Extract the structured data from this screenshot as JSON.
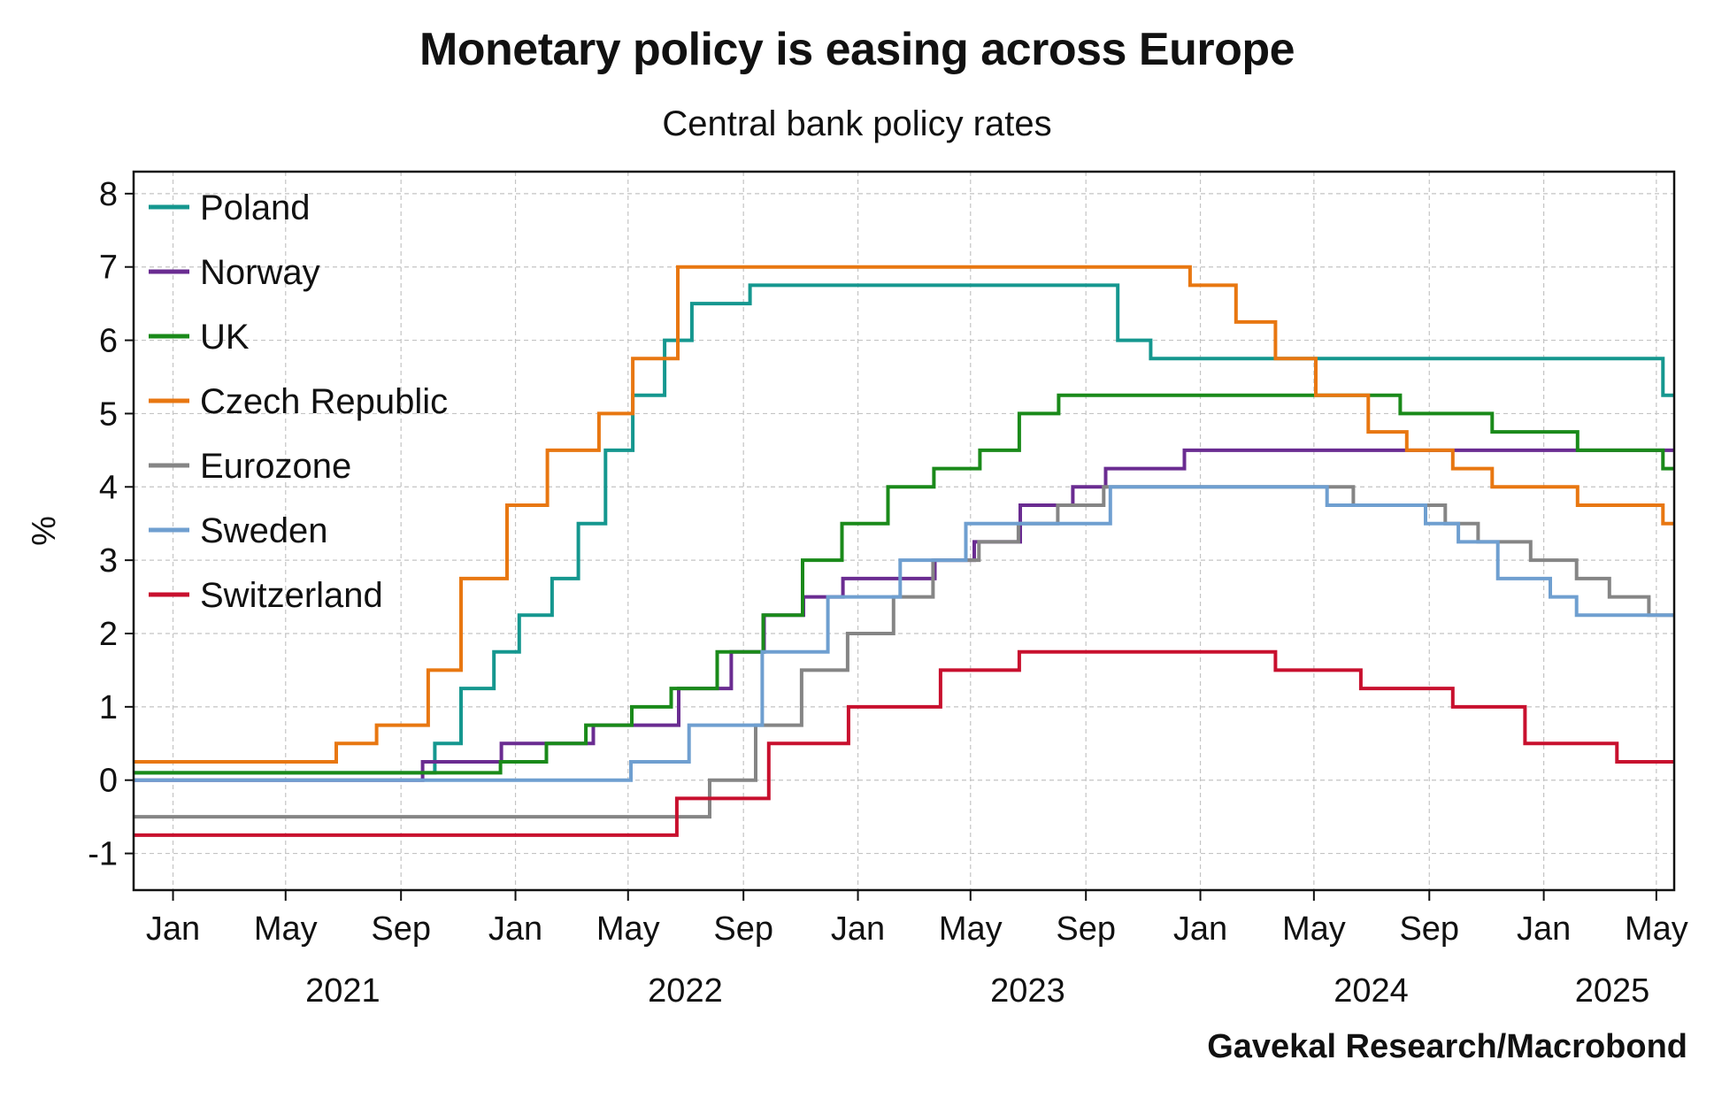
{
  "chart_data": {
    "type": "line",
    "title": "Monetary policy is easing across Europe",
    "subtitle": "Central bank policy rates",
    "ylabel": "%",
    "xlabel": "",
    "source": "Gavekal Research/Macrobond",
    "ylim": [
      -1.5,
      8.3
    ],
    "y_ticks": [
      -1,
      0,
      1,
      2,
      3,
      4,
      5,
      6,
      7,
      8
    ],
    "x_range": [
      "2020-11-20",
      "2025-05-20"
    ],
    "x_ticks": [
      {
        "date": "2021-01-01",
        "label": "Jan"
      },
      {
        "date": "2021-05-01",
        "label": "May"
      },
      {
        "date": "2021-09-01",
        "label": "Sep"
      },
      {
        "date": "2022-01-01",
        "label": "Jan"
      },
      {
        "date": "2022-05-01",
        "label": "May"
      },
      {
        "date": "2022-09-01",
        "label": "Sep"
      },
      {
        "date": "2023-01-01",
        "label": "Jan"
      },
      {
        "date": "2023-05-01",
        "label": "May"
      },
      {
        "date": "2023-09-01",
        "label": "Sep"
      },
      {
        "date": "2024-01-01",
        "label": "Jan"
      },
      {
        "date": "2024-05-01",
        "label": "May"
      },
      {
        "date": "2024-09-01",
        "label": "Sep"
      },
      {
        "date": "2025-01-01",
        "label": "Jan"
      },
      {
        "date": "2025-05-01",
        "label": "May"
      }
    ],
    "year_labels": [
      {
        "date": "2021-07-01",
        "label": "2021"
      },
      {
        "date": "2022-07-01",
        "label": "2022"
      },
      {
        "date": "2023-07-01",
        "label": "2023"
      },
      {
        "date": "2024-07-01",
        "label": "2024"
      },
      {
        "date": "2025-03-15",
        "label": "2025"
      }
    ],
    "grid": true,
    "legend_position": "top-left",
    "series": [
      {
        "name": "Poland",
        "color": "#15978f",
        "steps": [
          [
            "2020-11-20",
            0.1
          ],
          [
            "2021-10-07",
            0.5
          ],
          [
            "2021-11-04",
            1.25
          ],
          [
            "2021-12-09",
            1.75
          ],
          [
            "2022-01-05",
            2.25
          ],
          [
            "2022-02-09",
            2.75
          ],
          [
            "2022-03-09",
            3.5
          ],
          [
            "2022-04-07",
            4.5
          ],
          [
            "2022-05-06",
            5.25
          ],
          [
            "2022-06-09",
            6.0
          ],
          [
            "2022-07-08",
            6.5
          ],
          [
            "2022-09-08",
            6.75
          ],
          [
            "2023-10-05",
            6.0
          ],
          [
            "2023-11-09",
            5.75
          ],
          [
            "2025-05-08",
            5.25
          ],
          [
            "2025-05-20",
            5.25
          ]
        ]
      },
      {
        "name": "Norway",
        "color": "#6a2c91",
        "steps": [
          [
            "2020-11-20",
            0.0
          ],
          [
            "2021-09-24",
            0.25
          ],
          [
            "2021-12-17",
            0.5
          ],
          [
            "2022-03-25",
            0.75
          ],
          [
            "2022-06-24",
            1.25
          ],
          [
            "2022-08-19",
            1.75
          ],
          [
            "2022-09-23",
            2.25
          ],
          [
            "2022-11-04",
            2.5
          ],
          [
            "2022-12-16",
            2.75
          ],
          [
            "2023-03-24",
            3.0
          ],
          [
            "2023-05-05",
            3.25
          ],
          [
            "2023-06-23",
            3.75
          ],
          [
            "2023-08-18",
            4.0
          ],
          [
            "2023-09-22",
            4.25
          ],
          [
            "2023-12-15",
            4.5
          ],
          [
            "2025-05-20",
            4.5
          ]
        ]
      },
      {
        "name": "UK",
        "color": "#1a8a1a",
        "steps": [
          [
            "2020-11-20",
            0.1
          ],
          [
            "2021-12-16",
            0.25
          ],
          [
            "2022-02-03",
            0.5
          ],
          [
            "2022-03-17",
            0.75
          ],
          [
            "2022-05-05",
            1.0
          ],
          [
            "2022-06-16",
            1.25
          ],
          [
            "2022-08-04",
            1.75
          ],
          [
            "2022-09-22",
            2.25
          ],
          [
            "2022-11-03",
            3.0
          ],
          [
            "2022-12-15",
            3.5
          ],
          [
            "2023-02-02",
            4.0
          ],
          [
            "2023-03-23",
            4.25
          ],
          [
            "2023-05-11",
            4.5
          ],
          [
            "2023-06-22",
            5.0
          ],
          [
            "2023-08-03",
            5.25
          ],
          [
            "2024-08-01",
            5.0
          ],
          [
            "2024-11-07",
            4.75
          ],
          [
            "2025-02-06",
            4.5
          ],
          [
            "2025-05-08",
            4.25
          ],
          [
            "2025-05-20",
            4.25
          ]
        ]
      },
      {
        "name": "Czech Republic",
        "color": "#e87711",
        "steps": [
          [
            "2020-11-20",
            0.25
          ],
          [
            "2021-06-24",
            0.5
          ],
          [
            "2021-08-06",
            0.75
          ],
          [
            "2021-09-30",
            1.5
          ],
          [
            "2021-11-04",
            2.75
          ],
          [
            "2021-12-23",
            3.75
          ],
          [
            "2022-02-04",
            4.5
          ],
          [
            "2022-03-31",
            5.0
          ],
          [
            "2022-05-06",
            5.75
          ],
          [
            "2022-06-23",
            7.0
          ],
          [
            "2023-12-21",
            6.75
          ],
          [
            "2024-02-08",
            6.25
          ],
          [
            "2024-03-21",
            5.75
          ],
          [
            "2024-05-03",
            5.25
          ],
          [
            "2024-06-28",
            4.75
          ],
          [
            "2024-08-08",
            4.5
          ],
          [
            "2024-09-26",
            4.25
          ],
          [
            "2024-11-07",
            4.0
          ],
          [
            "2025-02-06",
            3.75
          ],
          [
            "2025-05-08",
            3.5
          ],
          [
            "2025-05-20",
            3.5
          ]
        ]
      },
      {
        "name": "Eurozone",
        "color": "#858585",
        "steps": [
          [
            "2020-11-20",
            -0.5
          ],
          [
            "2022-07-27",
            0.0
          ],
          [
            "2022-09-14",
            0.75
          ],
          [
            "2022-11-02",
            1.5
          ],
          [
            "2022-12-21",
            2.0
          ],
          [
            "2023-02-08",
            2.5
          ],
          [
            "2023-03-22",
            3.0
          ],
          [
            "2023-05-10",
            3.25
          ],
          [
            "2023-06-21",
            3.5
          ],
          [
            "2023-08-02",
            3.75
          ],
          [
            "2023-09-20",
            4.0
          ],
          [
            "2024-06-12",
            3.75
          ],
          [
            "2024-09-18",
            3.5
          ],
          [
            "2024-10-23",
            3.25
          ],
          [
            "2024-12-18",
            3.0
          ],
          [
            "2025-02-05",
            2.75
          ],
          [
            "2025-03-12",
            2.5
          ],
          [
            "2025-04-23",
            2.25
          ],
          [
            "2025-05-20",
            2.25
          ]
        ]
      },
      {
        "name": "Sweden",
        "color": "#6f9fd0",
        "steps": [
          [
            "2020-11-20",
            0.0
          ],
          [
            "2022-05-04",
            0.25
          ],
          [
            "2022-07-05",
            0.75
          ],
          [
            "2022-09-21",
            1.75
          ],
          [
            "2022-11-30",
            2.5
          ],
          [
            "2023-02-15",
            3.0
          ],
          [
            "2023-04-26",
            3.5
          ],
          [
            "2023-09-27",
            4.0
          ],
          [
            "2024-05-15",
            3.75
          ],
          [
            "2024-08-28",
            3.5
          ],
          [
            "2024-10-02",
            3.25
          ],
          [
            "2024-11-13",
            2.75
          ],
          [
            "2025-01-08",
            2.5
          ],
          [
            "2025-02-05",
            2.25
          ],
          [
            "2025-05-20",
            2.25
          ]
        ]
      },
      {
        "name": "Switzerland",
        "color": "#c8102e",
        "steps": [
          [
            "2020-11-20",
            -0.75
          ],
          [
            "2022-06-22",
            -0.25
          ],
          [
            "2022-09-28",
            0.5
          ],
          [
            "2022-12-22",
            1.0
          ],
          [
            "2023-03-30",
            1.5
          ],
          [
            "2023-06-22",
            1.75
          ],
          [
            "2024-03-21",
            1.5
          ],
          [
            "2024-06-20",
            1.25
          ],
          [
            "2024-09-26",
            1.0
          ],
          [
            "2024-12-12",
            0.5
          ],
          [
            "2025-03-20",
            0.25
          ],
          [
            "2025-05-20",
            0.25
          ]
        ]
      }
    ]
  }
}
